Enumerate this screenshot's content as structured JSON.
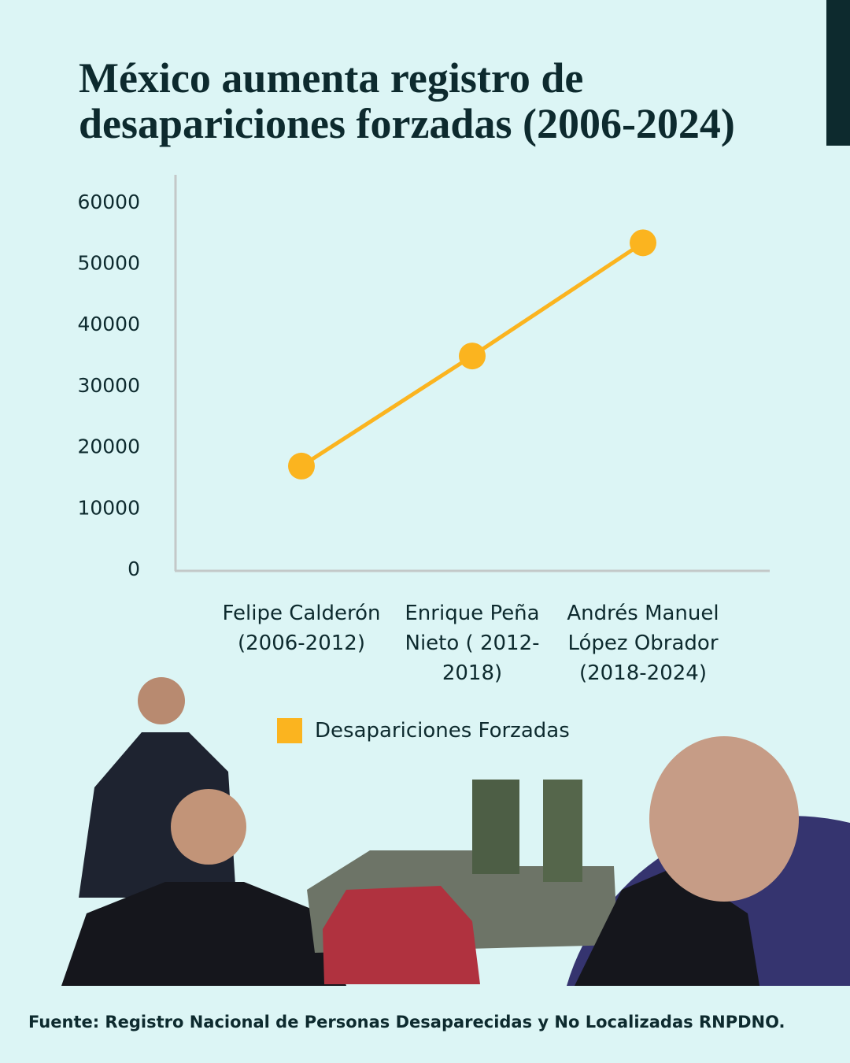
{
  "chart_data": {
    "type": "line",
    "title": "México aumenta registro de desapariciones forzadas (2006-2024)",
    "categories": [
      "Felipe Calderón (2006-2012)",
      "Enrique Peña Nieto ( 2012-2018)",
      "Andrés Manuel López Obrador (2018-2024)"
    ],
    "series": [
      {
        "name": "Desapariciones Forzadas",
        "color": "#fbb41f",
        "values": [
          17000,
          35000,
          53500
        ]
      }
    ],
    "ylim": [
      0,
      65000
    ],
    "yticks": [
      0,
      10000,
      20000,
      30000,
      40000,
      50000,
      60000
    ],
    "legend": "bottom",
    "source": "Fuente: Registro Nacional de Personas Desaparecidas y No Localizadas RNPDNO."
  }
}
